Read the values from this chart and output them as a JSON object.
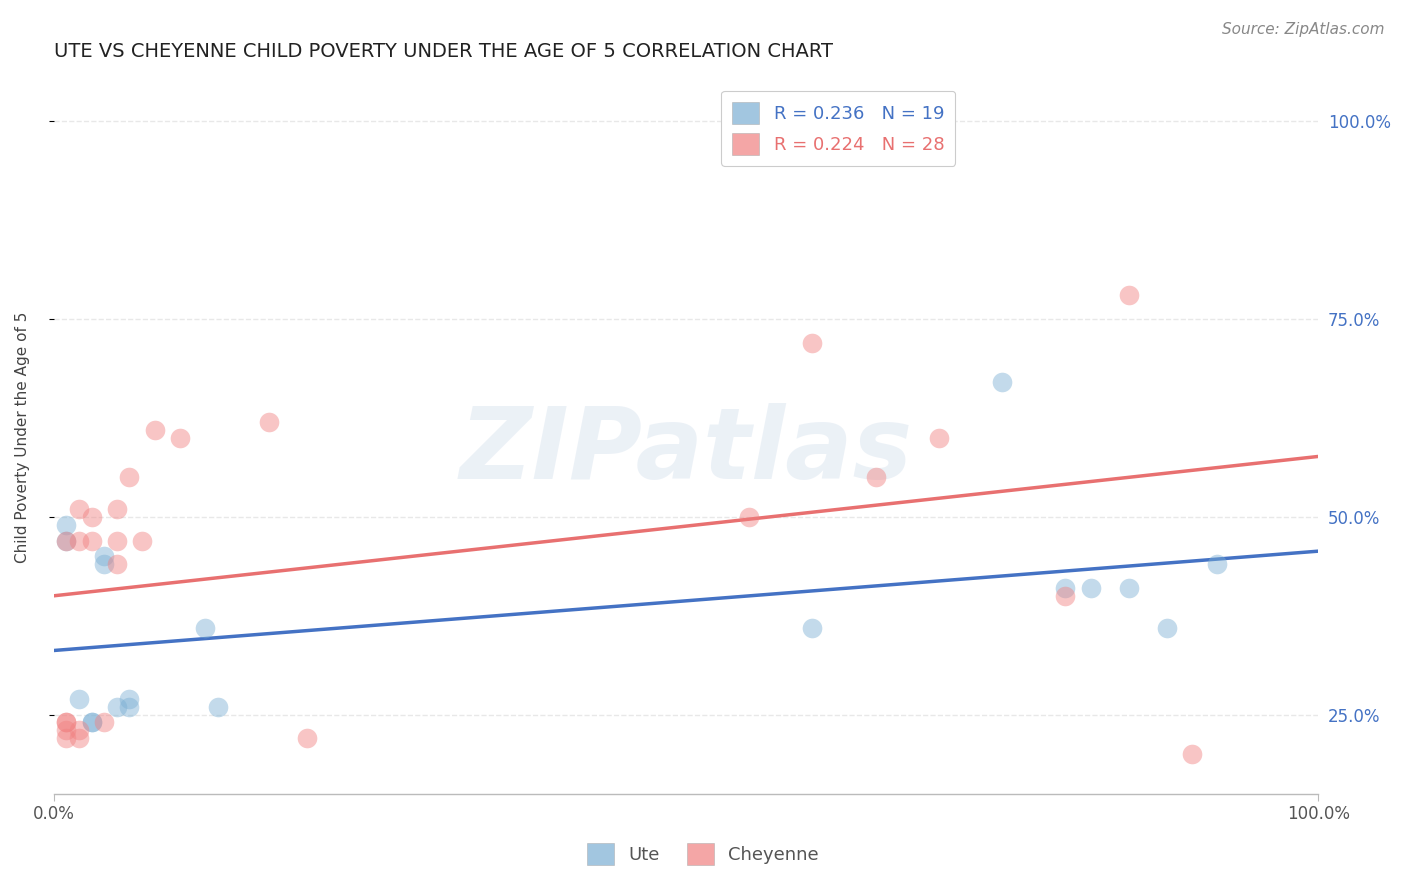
{
  "title": "UTE VS CHEYENNE CHILD POVERTY UNDER THE AGE OF 5 CORRELATION CHART",
  "source": "Source: ZipAtlas.com",
  "ylabel": "Child Poverty Under the Age of 5",
  "watermark": "ZIPatlas",
  "xlim": [
    0.0,
    1.0
  ],
  "ylim": [
    0.15,
    1.05
  ],
  "yticks": [
    0.25,
    0.5,
    0.75,
    1.0
  ],
  "ytick_labels": [
    "25.0%",
    "50.0%",
    "75.0%",
    "100.0%"
  ],
  "xticks": [
    0.0,
    1.0
  ],
  "xtick_labels": [
    "0.0%",
    "100.0%"
  ],
  "legend_ute": {
    "R": 0.236,
    "N": 19,
    "color": "#7bafd4"
  },
  "legend_cheyenne": {
    "R": 0.224,
    "N": 28,
    "color": "#f08080"
  },
  "ute_x": [
    0.01,
    0.01,
    0.02,
    0.03,
    0.03,
    0.04,
    0.04,
    0.05,
    0.06,
    0.06,
    0.12,
    0.13,
    0.6,
    0.75,
    0.8,
    0.82,
    0.85,
    0.88,
    0.92
  ],
  "ute_y": [
    0.47,
    0.49,
    0.27,
    0.24,
    0.24,
    0.44,
    0.45,
    0.26,
    0.26,
    0.27,
    0.36,
    0.26,
    0.36,
    0.67,
    0.41,
    0.41,
    0.41,
    0.36,
    0.44
  ],
  "cheyenne_x": [
    0.01,
    0.01,
    0.01,
    0.01,
    0.01,
    0.02,
    0.02,
    0.02,
    0.02,
    0.03,
    0.03,
    0.04,
    0.05,
    0.05,
    0.05,
    0.06,
    0.07,
    0.08,
    0.1,
    0.17,
    0.2,
    0.55,
    0.6,
    0.65,
    0.7,
    0.8,
    0.85,
    0.9
  ],
  "cheyenne_y": [
    0.22,
    0.23,
    0.24,
    0.24,
    0.47,
    0.22,
    0.23,
    0.47,
    0.51,
    0.47,
    0.5,
    0.24,
    0.44,
    0.47,
    0.51,
    0.55,
    0.47,
    0.61,
    0.6,
    0.62,
    0.22,
    0.5,
    0.72,
    0.55,
    0.6,
    0.4,
    0.78,
    0.2
  ],
  "ute_color": "#7bafd4",
  "cheyenne_color": "#f08080",
  "background_color": "#ffffff",
  "grid_color": "#e8e8e8",
  "title_fontsize": 14,
  "label_fontsize": 11,
  "tick_fontsize": 12,
  "source_fontsize": 11
}
